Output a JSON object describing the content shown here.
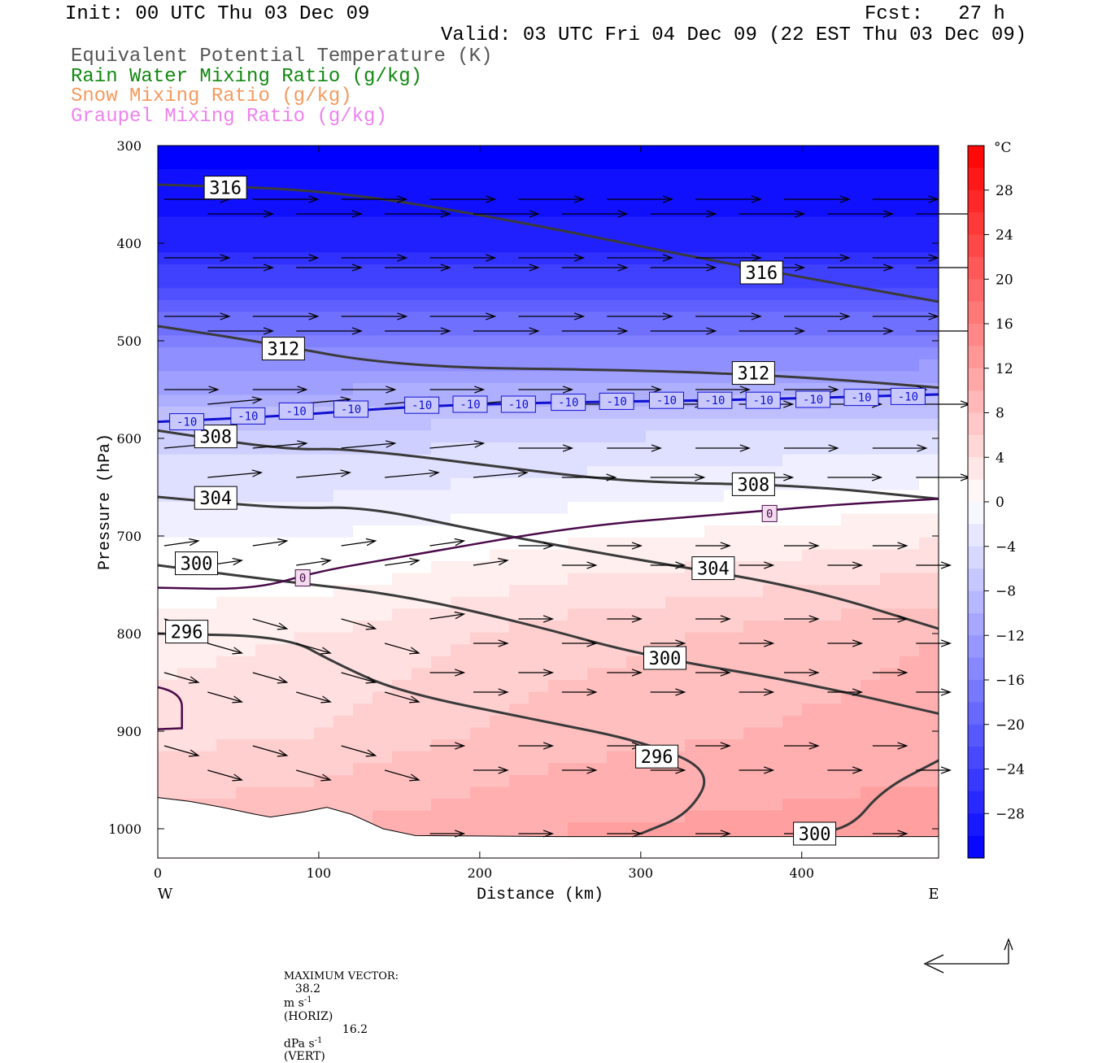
{
  "header": {
    "init": "Init: 00 UTC Thu 03 Dec 09",
    "fcst": "Fcst:   27 h",
    "valid": "Valid: 03 UTC Fri 04 Dec 09 (22 EST Thu 03 Dec 09)",
    "legend": [
      {
        "text": "Equivalent Potential Temperature (K)",
        "color": "#555555"
      },
      {
        "text": "Rain Water Mixing Ratio (g/kg)",
        "color": "#118811"
      },
      {
        "text": "Snow Mixing Ratio (g/kg)",
        "color": "#f59a5e"
      },
      {
        "text": "Graupel Mixing Ratio (g/kg)",
        "color": "#ee82ee"
      }
    ]
  },
  "chart_data": {
    "type": "cross-section",
    "xlabel": "Distance (km)",
    "ylabel": "Pressure (hPa)",
    "xlim": [
      0,
      485
    ],
    "ylim": [
      1030,
      300
    ],
    "x_ticks": [
      0,
      100,
      200,
      300,
      400
    ],
    "y_ticks": [
      300,
      400,
      500,
      600,
      700,
      800,
      900,
      1000
    ],
    "x_end_labels": {
      "left": "W",
      "right": "E"
    },
    "colorbar": {
      "unit": "°C",
      "ticks": [
        28,
        24,
        20,
        16,
        12,
        8,
        4,
        0,
        -4,
        -8,
        -12,
        -16,
        -20,
        -24,
        -28
      ],
      "range": [
        -32,
        32
      ]
    },
    "temperature_field": {
      "comment_free": true,
      "profiles": [
        {
          "x": 0,
          "levels": [
            [
              300,
              -32
            ],
            [
              400,
              -28
            ],
            [
              500,
              -16
            ],
            [
              600,
              -6
            ],
            [
              700,
              -1
            ],
            [
              750,
              0
            ],
            [
              800,
              2
            ],
            [
              900,
              4
            ],
            [
              1000,
              8
            ]
          ]
        },
        {
          "x": 100,
          "levels": [
            [
              300,
              -32
            ],
            [
              400,
              -28
            ],
            [
              500,
              -16
            ],
            [
              600,
              -6
            ],
            [
              700,
              -1
            ],
            [
              740,
              0
            ],
            [
              800,
              3
            ],
            [
              900,
              5
            ],
            [
              1000,
              9
            ]
          ]
        },
        {
          "x": 250,
          "levels": [
            [
              300,
              -32
            ],
            [
              400,
              -28
            ],
            [
              500,
              -16
            ],
            [
              600,
              -5
            ],
            [
              690,
              0
            ],
            [
              800,
              6
            ],
            [
              900,
              8
            ],
            [
              1000,
              11
            ]
          ]
        },
        {
          "x": 485,
          "levels": [
            [
              300,
              -32
            ],
            [
              400,
              -28
            ],
            [
              500,
              -16
            ],
            [
              600,
              -4
            ],
            [
              660,
              0
            ],
            [
              800,
              9
            ],
            [
              900,
              10
            ],
            [
              1000,
              12
            ]
          ]
        }
      ]
    },
    "theta_e_contours": [
      {
        "value": 316,
        "points": [
          [
            0,
            340
          ],
          [
            100,
            345
          ],
          [
            200,
            370
          ],
          [
            350,
            420
          ],
          [
            485,
            460
          ]
        ],
        "labels": [
          [
            42,
            343
          ],
          [
            375,
            430
          ]
        ]
      },
      {
        "value": 312,
        "points": [
          [
            0,
            485
          ],
          [
            60,
            500
          ],
          [
            150,
            527
          ],
          [
            300,
            530
          ],
          [
            400,
            537
          ],
          [
            485,
            548
          ]
        ],
        "labels": [
          [
            78,
            508
          ],
          [
            370,
            533
          ]
        ]
      },
      {
        "value": 308,
        "points": [
          [
            0,
            592
          ],
          [
            80,
            612
          ],
          [
            120,
            610
          ],
          [
            240,
            635
          ],
          [
            300,
            645
          ],
          [
            400,
            648
          ],
          [
            485,
            662
          ]
        ],
        "labels": [
          [
            36,
            598
          ],
          [
            370,
            647
          ]
        ]
      },
      {
        "value": 304,
        "points": [
          [
            0,
            660
          ],
          [
            80,
            672
          ],
          [
            130,
            670
          ],
          [
            200,
            695
          ],
          [
            300,
            725
          ],
          [
            400,
            752
          ],
          [
            485,
            795
          ]
        ],
        "labels": [
          [
            36,
            661
          ],
          [
            345,
            733
          ]
        ]
      },
      {
        "value": 300,
        "points": [
          [
            0,
            730
          ],
          [
            70,
            745
          ],
          [
            150,
            760
          ],
          [
            230,
            790
          ],
          [
            300,
            822
          ],
          [
            400,
            850
          ],
          [
            485,
            882
          ]
        ],
        "labels": [
          [
            24,
            728
          ],
          [
            315,
            825
          ]
        ]
      },
      {
        "value": 296,
        "points": [
          [
            0,
            800
          ],
          [
            80,
            803
          ],
          [
            110,
            830
          ],
          [
            150,
            860
          ],
          [
            240,
            890
          ],
          [
            300,
            910
          ],
          [
            345,
            940
          ],
          [
            330,
            985
          ],
          [
            300,
            1005
          ]
        ],
        "labels": [
          [
            18,
            798
          ],
          [
            310,
            926
          ]
        ]
      },
      {
        "value": 300,
        "points": [
          [
            400,
            1005
          ],
          [
            430,
            1000
          ],
          [
            450,
            960
          ],
          [
            485,
            930
          ]
        ],
        "labels": [
          [
            408,
            1005
          ]
        ]
      }
    ],
    "isotherm_minus10": {
      "value": -10,
      "points": [
        [
          0,
          583
        ],
        [
          80,
          577
        ],
        [
          160,
          567
        ],
        [
          250,
          563
        ],
        [
          350,
          561
        ],
        [
          485,
          555
        ]
      ],
      "labels": [
        [
          18,
          583
        ],
        [
          56,
          577
        ],
        [
          86,
          572
        ],
        [
          120,
          570
        ],
        [
          164,
          566
        ],
        [
          194,
          565
        ],
        [
          224,
          565
        ],
        [
          255,
          563
        ],
        [
          285,
          562
        ],
        [
          316,
          561
        ],
        [
          346,
          561
        ],
        [
          376,
          561
        ],
        [
          407,
          560
        ],
        [
          437,
          558
        ],
        [
          466,
          557
        ]
      ]
    },
    "isotherm_zero": {
      "value": 0,
      "points": [
        [
          0,
          753
        ],
        [
          60,
          755
        ],
        [
          100,
          736
        ],
        [
          150,
          722
        ],
        [
          260,
          690
        ],
        [
          350,
          678
        ],
        [
          420,
          668
        ],
        [
          485,
          662
        ]
      ],
      "labels": [
        [
          90,
          743
        ],
        [
          380,
          677
        ]
      ]
    },
    "wind_vectors": [],
    "max_vector": {
      "horiz": "38.2",
      "vert": "16.2"
    }
  },
  "footer": {
    "label": "MAXIMUM VECTOR:",
    "horiz_value": "38.2",
    "horiz_unit_pre": "m s",
    "horiz_exp": "-1",
    "horiz_suffix": "(HORIZ)",
    "vert_value": "16.2",
    "vert_unit_pre": "dPa s",
    "vert_exp": "-1",
    "vert_suffix": "(VERT)"
  }
}
